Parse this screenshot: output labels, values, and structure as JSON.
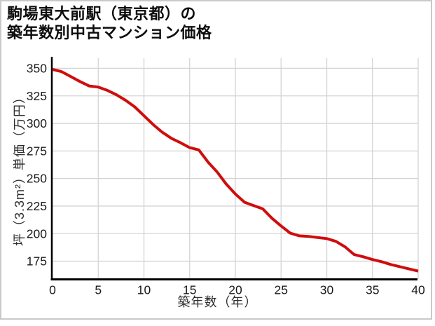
{
  "page": {
    "title_line1": "駒場東大前駅（東京都）の",
    "title_line2": "築年数別中古マンション価格"
  },
  "chart_data": {
    "type": "line",
    "title": "駒場東大前駅（東京都）の築年数別中古マンション価格",
    "xlabel": "築年数（年）",
    "ylabel": "坪（3.3m²）単価（万円）",
    "x": [
      0,
      1,
      2,
      3,
      4,
      5,
      6,
      7,
      8,
      9,
      10,
      11,
      12,
      13,
      14,
      15,
      16,
      17,
      18,
      19,
      20,
      21,
      22,
      23,
      24,
      25,
      26,
      27,
      28,
      29,
      30,
      31,
      32,
      33,
      34,
      35,
      36,
      37,
      38,
      39,
      40
    ],
    "values": [
      349,
      347,
      342.5,
      338,
      334,
      333,
      330,
      326,
      321,
      315,
      307,
      299,
      292,
      286.5,
      282.5,
      278,
      276,
      265,
      256,
      245,
      236,
      228.5,
      225.5,
      222.5,
      214,
      207,
      200.5,
      198,
      197.5,
      196.5,
      195.5,
      193,
      188,
      181,
      179,
      176.5,
      174.5,
      172,
      170,
      168,
      166
    ],
    "xlim": [
      0,
      40
    ],
    "ylim": [
      158.5,
      359.2
    ],
    "xticks": [
      0,
      5,
      10,
      15,
      20,
      25,
      30,
      35,
      40
    ],
    "yticks": [
      175,
      200,
      225,
      250,
      275,
      300,
      325,
      350
    ],
    "grid": true,
    "legend": "none",
    "line_color": "#cf0d0d",
    "grid_color": "#d4d4d4",
    "axis_color": "#000000",
    "tick_label_color": "#1a1a1a"
  }
}
